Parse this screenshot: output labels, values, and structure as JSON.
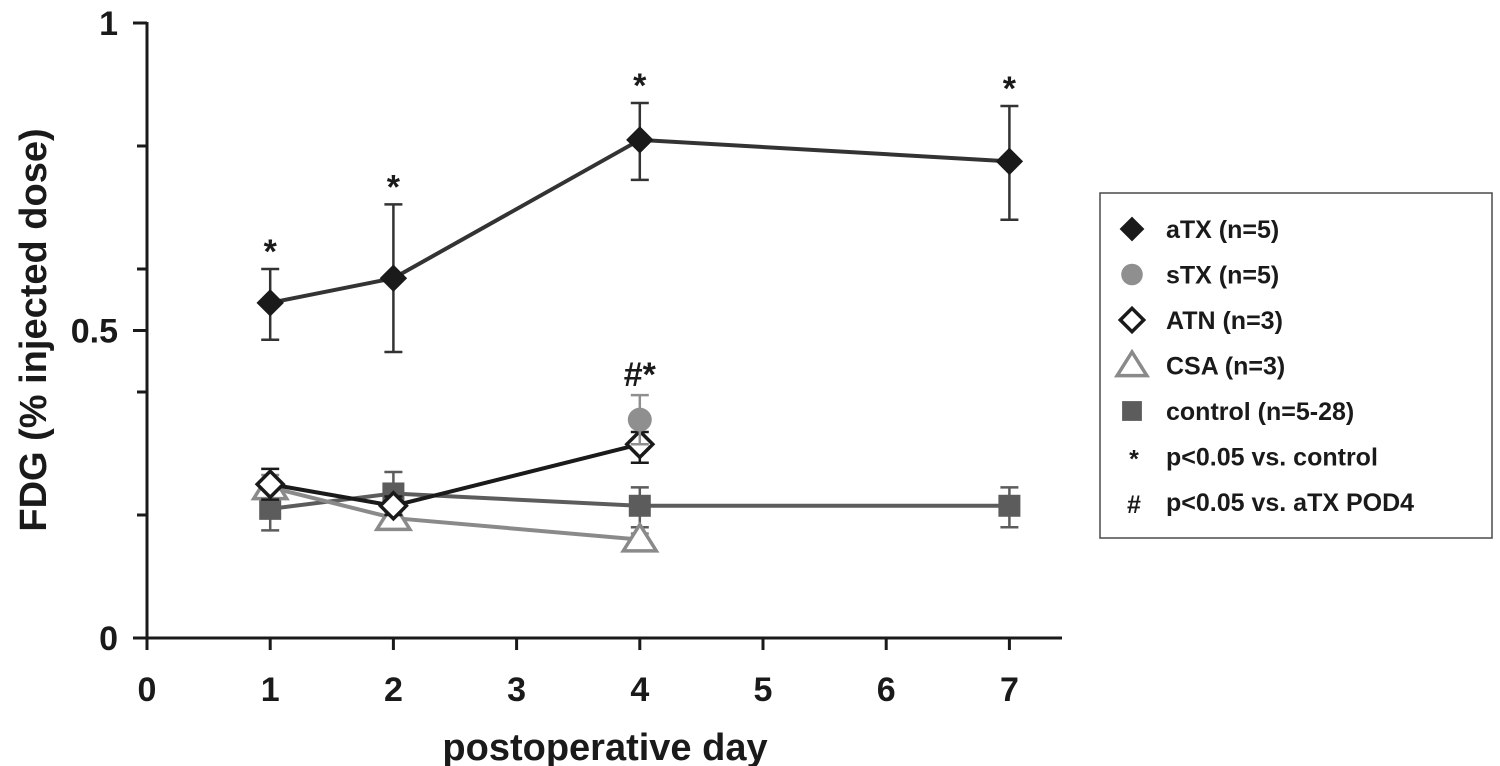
{
  "chart_data": {
    "type": "line",
    "title": "",
    "xlabel": "postoperative day",
    "ylabel": "FDG (% injected dose)",
    "xlim": [
      0,
      7.5
    ],
    "ylim": [
      0,
      1
    ],
    "xticks": [
      "0",
      "1",
      "2",
      "3",
      "4",
      "5",
      "6",
      "7"
    ],
    "yticks": [
      {
        "value": 0,
        "label": "0"
      },
      {
        "value": 0.5,
        "label": "0.5"
      },
      {
        "value": 1,
        "label": "1"
      }
    ],
    "yminor": [
      0.2,
      0.4,
      0.6,
      0.8
    ],
    "series": [
      {
        "name": "control (n=5-28)",
        "marker": "square",
        "color": "#5c5c5c",
        "x": [
          1,
          2,
          4,
          7
        ],
        "y": [
          0.21,
          0.235,
          0.215,
          0.215
        ],
        "err_low": [
          0.035,
          0.04,
          0.035,
          0.035
        ],
        "err_high": [
          0.035,
          0.035,
          0.03,
          0.03
        ]
      },
      {
        "name": "CSA (n=3)",
        "marker": "triangle-open",
        "color": "#8a8a8a",
        "x": [
          1,
          2,
          4
        ],
        "y": [
          0.245,
          0.195,
          0.16
        ],
        "err_low": [
          0.02,
          0.01,
          0.01
        ],
        "err_high": [
          0.02,
          0.01,
          0.01
        ]
      },
      {
        "name": "ATN (n=3)",
        "marker": "diamond-open",
        "color": "#1a1a1a",
        "x": [
          1,
          2,
          4
        ],
        "y": [
          0.25,
          0.215,
          0.315
        ],
        "err_low": [
          0.025,
          0.015,
          0.03
        ],
        "err_high": [
          0.025,
          0.015,
          0.02
        ]
      },
      {
        "name": "sTX (n=5)",
        "marker": "circle",
        "color": "#8f8f8f",
        "x": [
          4
        ],
        "y": [
          0.355
        ],
        "err_low": [
          0.04
        ],
        "err_high": [
          0.04
        ]
      },
      {
        "name": "aTX (n=5)",
        "marker": "diamond",
        "color": "#1a1a1a",
        "lineColor": "#333333",
        "x": [
          1,
          2,
          4,
          7
        ],
        "y": [
          0.545,
          0.585,
          0.81,
          0.775
        ],
        "err_low": [
          0.06,
          0.12,
          0.065,
          0.095
        ],
        "err_high": [
          0.055,
          0.12,
          0.06,
          0.09
        ]
      }
    ],
    "annotations": [
      {
        "text": "*",
        "x": 1,
        "y": 0.6
      },
      {
        "text": "*",
        "x": 2,
        "y": 0.705
      },
      {
        "text": "*",
        "x": 4,
        "y": 0.87
      },
      {
        "text": "*",
        "x": 7,
        "y": 0.865
      },
      {
        "text": "#*",
        "x": 4,
        "y": 0.4
      }
    ],
    "legend": {
      "position": "right",
      "entries": [
        {
          "symbol": "diamond",
          "label": "aTX (n=5)"
        },
        {
          "symbol": "circle",
          "label": "sTX (n=5)"
        },
        {
          "symbol": "diamond-open",
          "label": "ATN (n=3)"
        },
        {
          "symbol": "triangle-open",
          "label": "CSA (n=3)"
        },
        {
          "symbol": "square",
          "label": "control (n=5-28)"
        },
        {
          "symbol": "text",
          "glyph": "*",
          "label": "p<0.05 vs. control"
        },
        {
          "symbol": "text",
          "glyph": "#",
          "label": "p<0.05 vs. aTX POD4"
        }
      ]
    }
  }
}
